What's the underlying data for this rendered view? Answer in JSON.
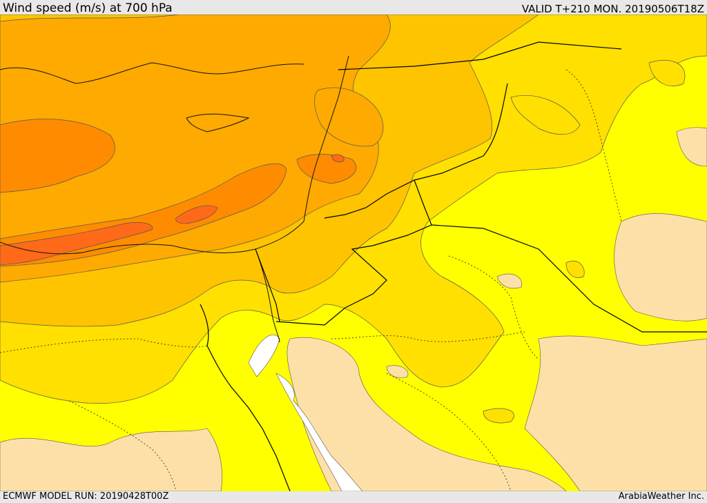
{
  "header": {
    "title": "Wind speed (m/s) at 700 hPa",
    "valid": "VALID T+210 MON. 20190506T18Z"
  },
  "footer": {
    "model_run": "ECMWF MODEL RUN: 20190428T00Z",
    "credit": "ArabiaWeather Inc."
  },
  "colors": {
    "band_lightest": "#fde0a8",
    "band_yellow": "#ffff00",
    "band_gold": "#ffe000",
    "band_amber": "#ffc400",
    "band_orange_light": "#ffaa00",
    "band_orange": "#ff8c00",
    "band_orange_dark": "#ff6a18",
    "water": "#ffffff",
    "background": "#e8e8e8"
  }
}
